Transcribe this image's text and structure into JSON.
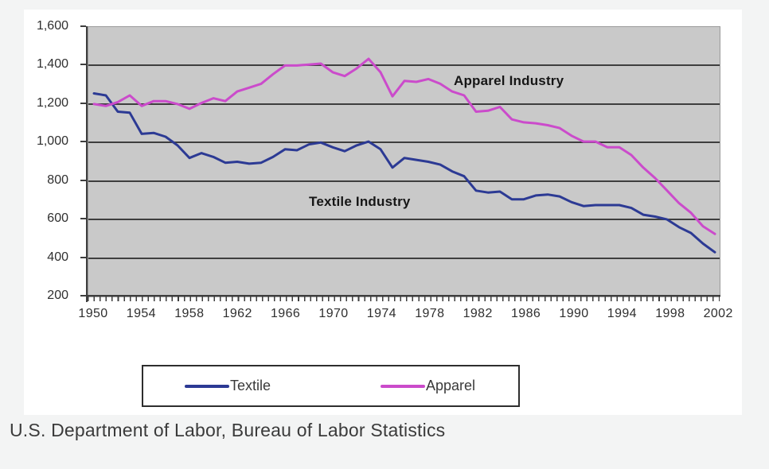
{
  "page": {
    "caption": "U.S. Department of Labor, Bureau of Labor Statistics"
  },
  "colors": {
    "page_background": "#f3f4f4",
    "chart_background": "#ffffff",
    "plot_background": "#c9c9c9",
    "gridline": "#3e3e3e",
    "axis_text": "#2f2f2f",
    "textile_line": "#2c3a94",
    "apparel_line": "#cb4bcb"
  },
  "chart_data": {
    "type": "line",
    "title": "",
    "xlabel": "",
    "ylabel": "",
    "grid": true,
    "legend_position": "bottom",
    "ylim": [
      200,
      1600
    ],
    "x_start": 1950,
    "x_end": 2002,
    "y_ticks": [
      {
        "value": 1600,
        "label": "1,600"
      },
      {
        "value": 1400,
        "label": "1,400"
      },
      {
        "value": 1200,
        "label": "1,200"
      },
      {
        "value": 1000,
        "label": "1,000"
      },
      {
        "value": 800,
        "label": "800"
      },
      {
        "value": 600,
        "label": "600"
      },
      {
        "value": 400,
        "label": "400"
      },
      {
        "value": 200,
        "label": "200"
      }
    ],
    "x_tick_labels": [
      "1950",
      "1954",
      "1958",
      "1962",
      "1966",
      "1970",
      "1974",
      "1978",
      "1982",
      "1986",
      "1990",
      "1994",
      "1998",
      "2002"
    ],
    "series": [
      {
        "name": "Textile",
        "color": "#2c3a94",
        "values": [
          1255,
          1245,
          1160,
          1155,
          1045,
          1050,
          1030,
          985,
          920,
          945,
          925,
          895,
          900,
          890,
          895,
          925,
          965,
          960,
          990,
          1000,
          975,
          955,
          985,
          1005,
          965,
          870,
          920,
          910,
          900,
          885,
          850,
          825,
          750,
          740,
          745,
          705,
          705,
          725,
          730,
          720,
          690,
          670,
          675,
          675,
          675,
          660,
          625,
          615,
          600,
          560,
          530,
          475,
          430
        ]
      },
      {
        "name": "Apparel",
        "color": "#cb4bcb",
        "values": [
          1200,
          1190,
          1210,
          1245,
          1190,
          1215,
          1215,
          1200,
          1175,
          1205,
          1230,
          1215,
          1265,
          1285,
          1305,
          1355,
          1400,
          1400,
          1405,
          1410,
          1365,
          1345,
          1385,
          1435,
          1365,
          1240,
          1320,
          1315,
          1330,
          1305,
          1265,
          1245,
          1160,
          1165,
          1185,
          1120,
          1105,
          1100,
          1090,
          1075,
          1035,
          1005,
          1005,
          975,
          975,
          935,
          870,
          815,
          750,
          685,
          635,
          565,
          525
        ]
      }
    ],
    "annotations": [
      {
        "id": "apparel-industry",
        "text": "Apparel Industry"
      },
      {
        "id": "textile-industry",
        "text": "Textile Industry"
      }
    ]
  },
  "legend": {
    "items": [
      {
        "label": "Textile"
      },
      {
        "label": "Apparel"
      }
    ]
  }
}
